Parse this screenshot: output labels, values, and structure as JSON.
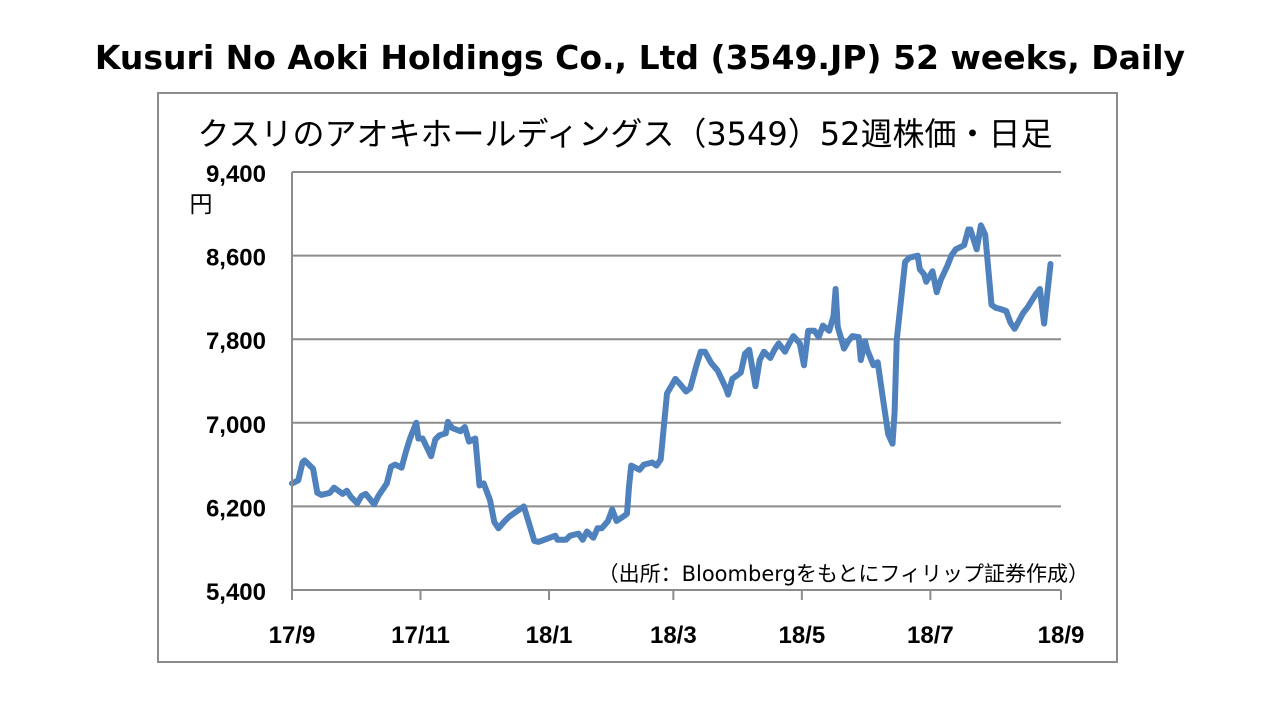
{
  "page_title": "Kusuri No Aoki Holdings Co., Ltd (3549.JP) 52 weeks, Daily",
  "chart_data": {
    "type": "line",
    "title": "クスリのアオキホールディングス（3549）52週株価・日足",
    "y_unit": "円",
    "source_note": "（出所：Bloombergをもとにフィリップ証券作成）",
    "ylim": [
      5400,
      9400
    ],
    "yticks": [
      5400,
      6200,
      7000,
      7800,
      8600,
      9400
    ],
    "ytick_labels": [
      "5,400",
      "6,200",
      "7,000",
      "7,800",
      "8,600",
      "9,400"
    ],
    "xlim": [
      "2017-09-01",
      "2018-09-01"
    ],
    "xticks": [
      {
        "date": "2017-09-01",
        "label": "17/9"
      },
      {
        "date": "2017-11-01",
        "label": "17/11"
      },
      {
        "date": "2018-01-01",
        "label": "18/1"
      },
      {
        "date": "2018-03-01",
        "label": "18/3"
      },
      {
        "date": "2018-05-01",
        "label": "18/5"
      },
      {
        "date": "2018-07-01",
        "label": "18/7"
      },
      {
        "date": "2018-09-01",
        "label": "18/9"
      }
    ],
    "grid": true,
    "line_color": "#4f81bd",
    "series": [
      {
        "values": [
          [
            "2017-09-01",
            6420
          ],
          [
            "2017-09-04",
            6450
          ],
          [
            "2017-09-06",
            6620
          ],
          [
            "2017-09-07",
            6640
          ],
          [
            "2017-09-11",
            6560
          ],
          [
            "2017-09-13",
            6330
          ],
          [
            "2017-09-15",
            6310
          ],
          [
            "2017-09-19",
            6330
          ],
          [
            "2017-09-21",
            6380
          ],
          [
            "2017-09-25",
            6320
          ],
          [
            "2017-09-27",
            6350
          ],
          [
            "2017-09-29",
            6290
          ],
          [
            "2017-10-02",
            6230
          ],
          [
            "2017-10-04",
            6300
          ],
          [
            "2017-10-06",
            6320
          ],
          [
            "2017-10-10",
            6220
          ],
          [
            "2017-10-12",
            6300
          ],
          [
            "2017-10-16",
            6420
          ],
          [
            "2017-10-18",
            6580
          ],
          [
            "2017-10-20",
            6600
          ],
          [
            "2017-10-23",
            6570
          ],
          [
            "2017-10-25",
            6720
          ],
          [
            "2017-10-27",
            6850
          ],
          [
            "2017-10-30",
            7000
          ],
          [
            "2017-10-31",
            6850
          ],
          [
            "2017-11-02",
            6850
          ],
          [
            "2017-11-06",
            6680
          ],
          [
            "2017-11-08",
            6840
          ],
          [
            "2017-11-10",
            6880
          ],
          [
            "2017-11-13",
            6900
          ],
          [
            "2017-11-14",
            7010
          ],
          [
            "2017-11-16",
            6950
          ],
          [
            "2017-11-20",
            6920
          ],
          [
            "2017-11-22",
            6960
          ],
          [
            "2017-11-24",
            6820
          ],
          [
            "2017-11-27",
            6850
          ],
          [
            "2017-11-29",
            6400
          ],
          [
            "2017-12-01",
            6420
          ],
          [
            "2017-12-04",
            6260
          ],
          [
            "2017-12-06",
            6050
          ],
          [
            "2017-12-08",
            5990
          ],
          [
            "2017-12-11",
            6060
          ],
          [
            "2017-12-13",
            6100
          ],
          [
            "2017-12-15",
            6130
          ],
          [
            "2017-12-18",
            6170
          ],
          [
            "2017-12-20",
            6200
          ],
          [
            "2017-12-22",
            6070
          ],
          [
            "2017-12-25",
            5870
          ],
          [
            "2017-12-27",
            5860
          ],
          [
            "2018-01-04",
            5920
          ],
          [
            "2018-01-05",
            5880
          ],
          [
            "2018-01-09",
            5880
          ],
          [
            "2018-01-11",
            5920
          ],
          [
            "2018-01-15",
            5940
          ],
          [
            "2018-01-17",
            5880
          ],
          [
            "2018-01-19",
            5960
          ],
          [
            "2018-01-22",
            5900
          ],
          [
            "2018-01-24",
            5990
          ],
          [
            "2018-01-26",
            5990
          ],
          [
            "2018-01-29",
            6060
          ],
          [
            "2018-01-31",
            6170
          ],
          [
            "2018-02-02",
            6060
          ],
          [
            "2018-02-05",
            6100
          ],
          [
            "2018-02-07",
            6130
          ],
          [
            "2018-02-08",
            6400
          ],
          [
            "2018-02-09",
            6590
          ],
          [
            "2018-02-13",
            6550
          ],
          [
            "2018-02-15",
            6600
          ],
          [
            "2018-02-19",
            6620
          ],
          [
            "2018-02-21",
            6590
          ],
          [
            "2018-02-23",
            6650
          ],
          [
            "2018-02-26",
            7280
          ],
          [
            "2018-02-28",
            7350
          ],
          [
            "2018-03-02",
            7420
          ],
          [
            "2018-03-05",
            7350
          ],
          [
            "2018-03-07",
            7300
          ],
          [
            "2018-03-09",
            7330
          ],
          [
            "2018-03-12",
            7550
          ],
          [
            "2018-03-14",
            7680
          ],
          [
            "2018-03-16",
            7680
          ],
          [
            "2018-03-19",
            7570
          ],
          [
            "2018-03-22",
            7500
          ],
          [
            "2018-03-26",
            7330
          ],
          [
            "2018-03-27",
            7270
          ],
          [
            "2018-03-29",
            7420
          ],
          [
            "2018-04-02",
            7480
          ],
          [
            "2018-04-04",
            7660
          ],
          [
            "2018-04-06",
            7700
          ],
          [
            "2018-04-09",
            7350
          ],
          [
            "2018-04-11",
            7600
          ],
          [
            "2018-04-13",
            7680
          ],
          [
            "2018-04-16",
            7620
          ],
          [
            "2018-04-18",
            7700
          ],
          [
            "2018-04-20",
            7760
          ],
          [
            "2018-04-23",
            7680
          ],
          [
            "2018-04-25",
            7760
          ],
          [
            "2018-04-27",
            7830
          ],
          [
            "2018-04-30",
            7760
          ],
          [
            "2018-05-02",
            7550
          ],
          [
            "2018-05-04",
            7880
          ],
          [
            "2018-05-07",
            7880
          ],
          [
            "2018-05-09",
            7820
          ],
          [
            "2018-05-11",
            7930
          ],
          [
            "2018-05-14",
            7880
          ],
          [
            "2018-05-16",
            8020
          ],
          [
            "2018-05-17",
            8280
          ],
          [
            "2018-05-18",
            7920
          ],
          [
            "2018-05-21",
            7710
          ],
          [
            "2018-05-23",
            7780
          ],
          [
            "2018-05-25",
            7830
          ],
          [
            "2018-05-28",
            7820
          ],
          [
            "2018-05-29",
            7600
          ],
          [
            "2018-05-31",
            7780
          ],
          [
            "2018-06-01",
            7700
          ],
          [
            "2018-06-04",
            7550
          ],
          [
            "2018-06-06",
            7580
          ],
          [
            "2018-06-08",
            7300
          ],
          [
            "2018-06-11",
            6890
          ],
          [
            "2018-06-13",
            6800
          ],
          [
            "2018-06-14",
            7100
          ],
          [
            "2018-06-15",
            7790
          ],
          [
            "2018-06-19",
            8540
          ],
          [
            "2018-06-21",
            8580
          ],
          [
            "2018-06-25",
            8600
          ],
          [
            "2018-06-26",
            8470
          ],
          [
            "2018-06-28",
            8420
          ],
          [
            "2018-06-29",
            8350
          ],
          [
            "2018-07-02",
            8450
          ],
          [
            "2018-07-04",
            8250
          ],
          [
            "2018-07-06",
            8370
          ],
          [
            "2018-07-09",
            8500
          ],
          [
            "2018-07-11",
            8600
          ],
          [
            "2018-07-13",
            8660
          ],
          [
            "2018-07-17",
            8700
          ],
          [
            "2018-07-19",
            8850
          ],
          [
            "2018-07-20",
            8850
          ],
          [
            "2018-07-23",
            8660
          ],
          [
            "2018-07-25",
            8890
          ],
          [
            "2018-07-27",
            8800
          ],
          [
            "2018-07-30",
            8130
          ],
          [
            "2018-08-01",
            8100
          ],
          [
            "2018-08-03",
            8090
          ],
          [
            "2018-08-06",
            8070
          ],
          [
            "2018-08-08",
            7960
          ],
          [
            "2018-08-10",
            7900
          ],
          [
            "2018-08-14",
            8050
          ],
          [
            "2018-08-16",
            8100
          ],
          [
            "2018-08-20",
            8230
          ],
          [
            "2018-08-22",
            8280
          ],
          [
            "2018-08-24",
            7950
          ],
          [
            "2018-08-27",
            8520
          ]
        ]
      }
    ]
  }
}
